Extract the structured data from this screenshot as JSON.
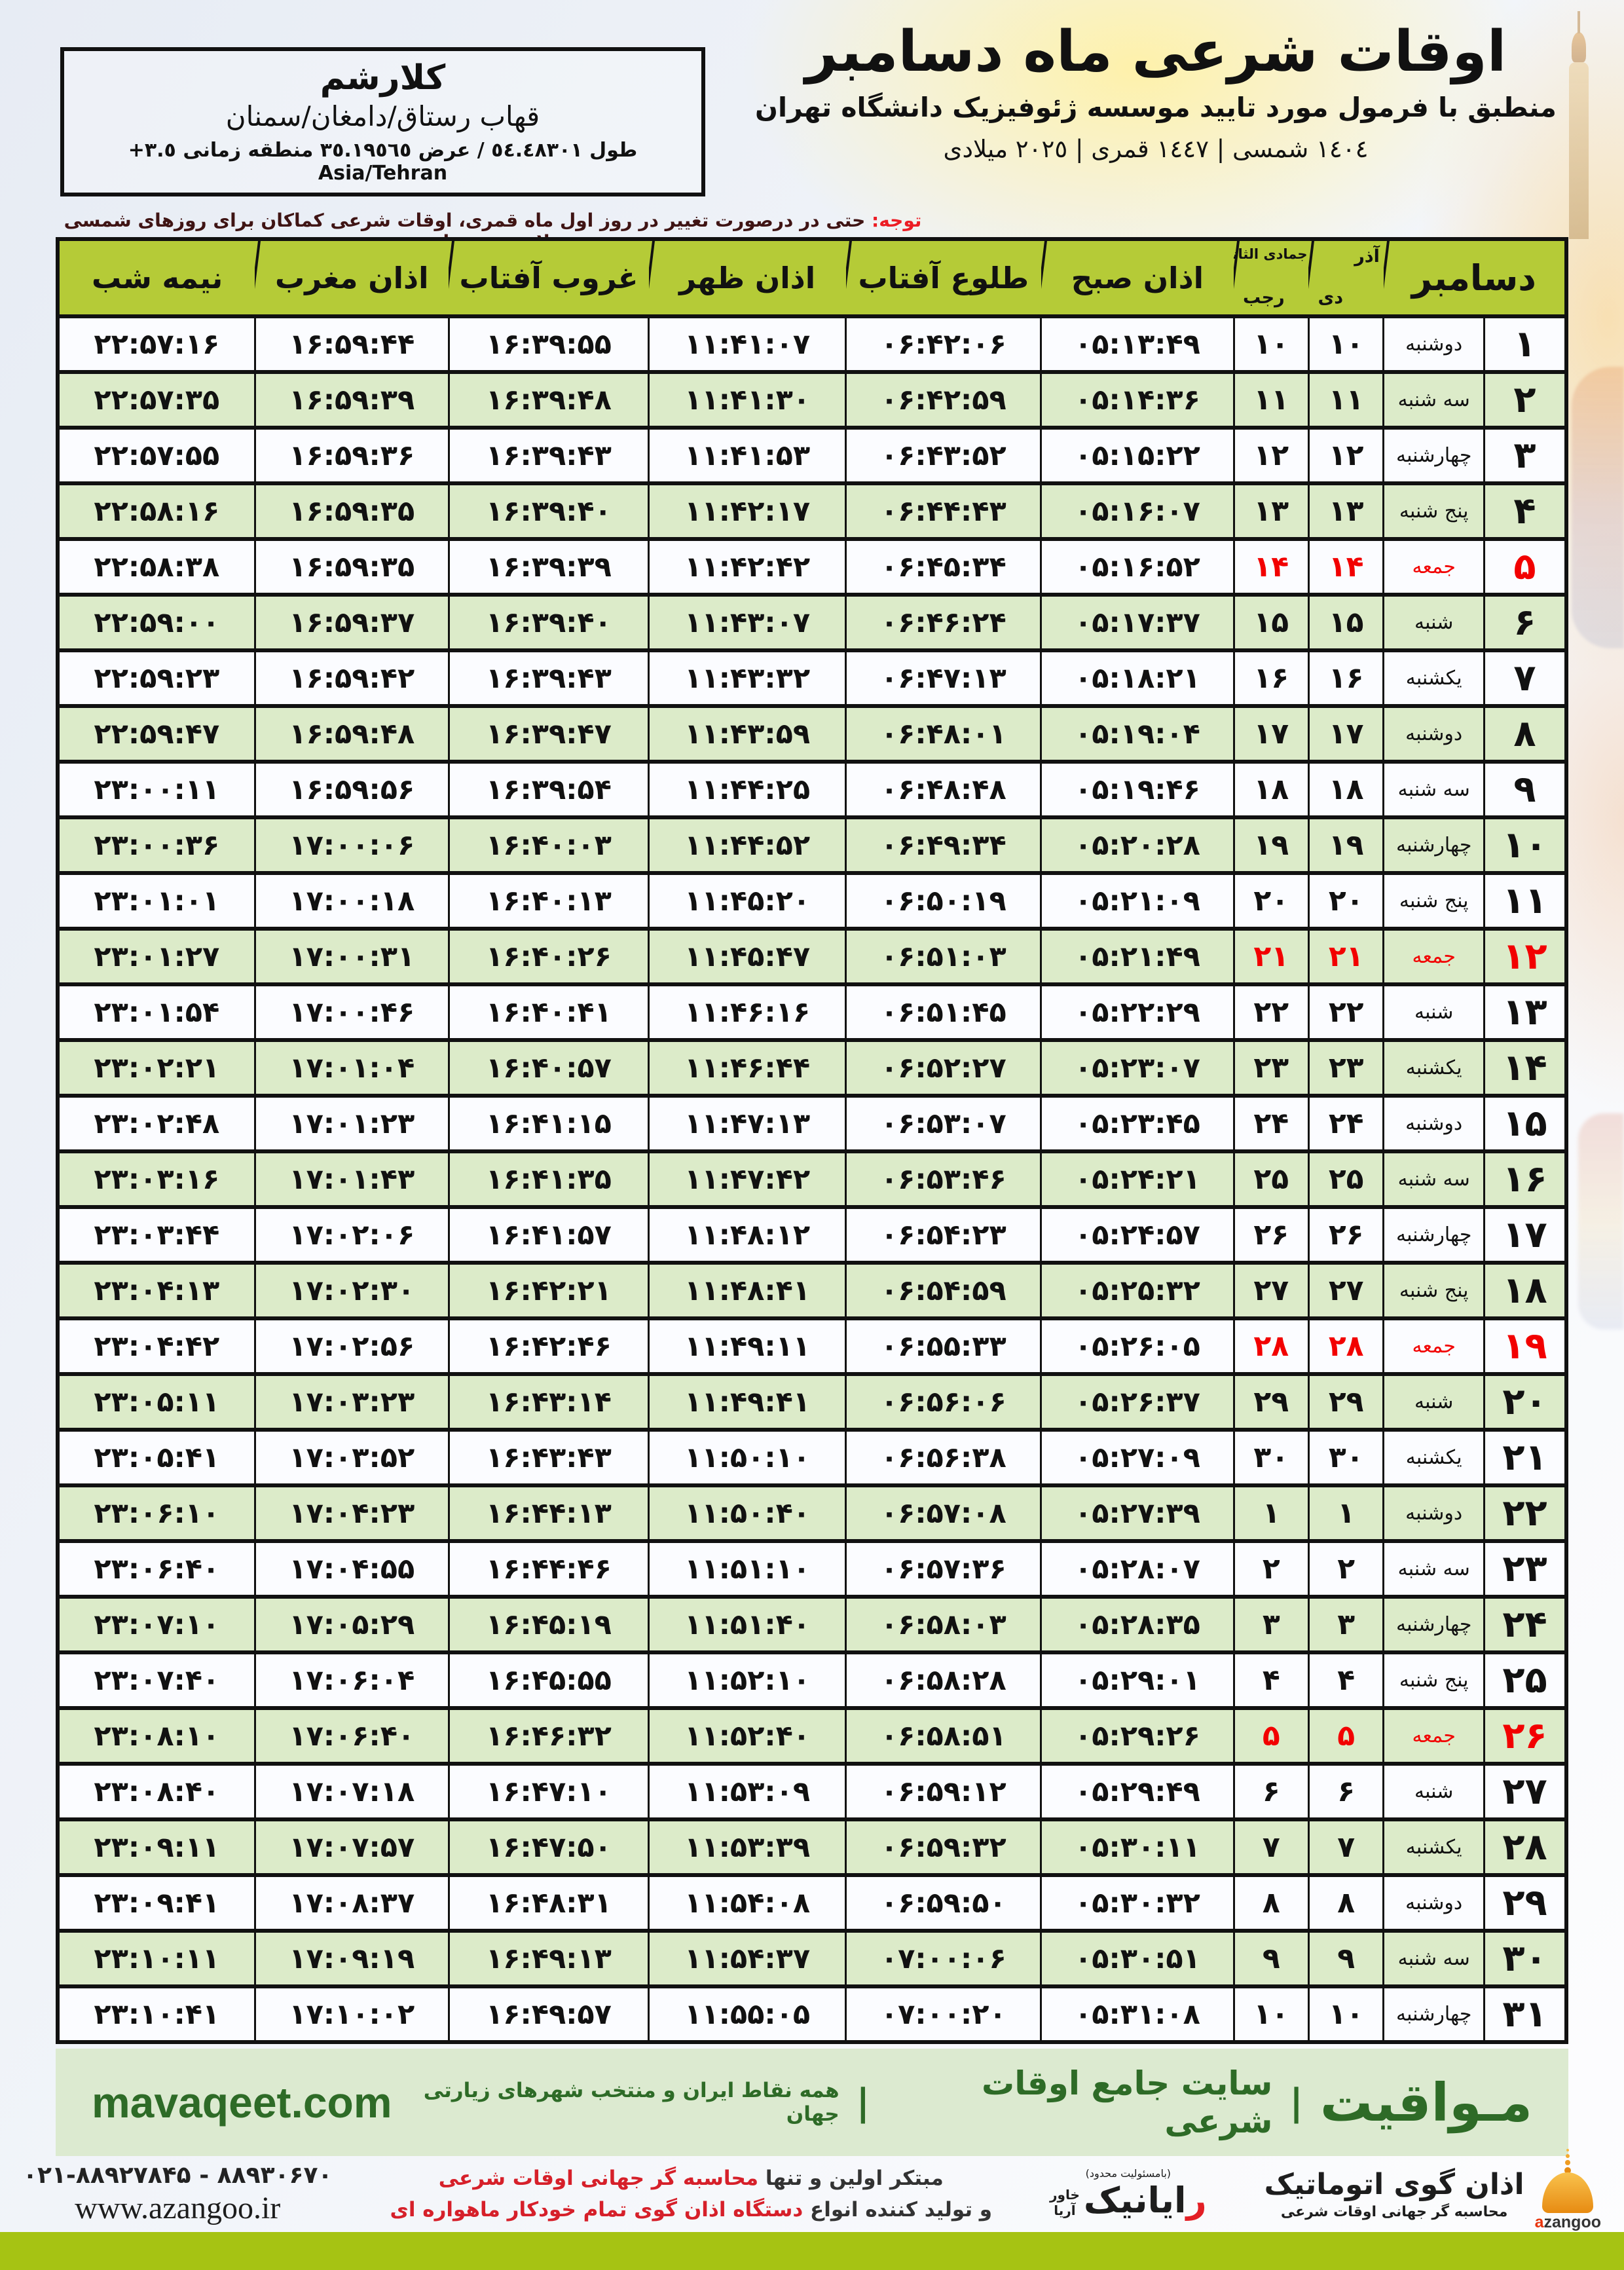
{
  "header": {
    "title": "اوقات شرعی ماه دسامبر",
    "subtitle": "منطبق با فرمول مورد تایید موسسه ژئوفیزیک دانشگاه تهران",
    "years": "١٤٠٤ شمسی | ١٤٤٧ قمری | ٢٠٢٥ میلادی"
  },
  "location": {
    "city": "کلارشم",
    "region": "قهاب رستاق/دامغان/سمنان",
    "coords": "طول ٥٤.٤٨٣٠١ / عرض ٣٥.١٩٥٦٥ منطقه زمانی ٣.٥+ Asia/Tehran"
  },
  "notice": {
    "label": "توجه:",
    "text": " حتی در درصورت تغییر در روز اول ماه قمری، اوقات شرعی کماکان برای روزهای شمسی و میلادی معتبر است."
  },
  "table": {
    "headers": {
      "december": "دسامبر",
      "solar_top": "آذر",
      "solar_bottom": "دی",
      "lunar_top": "جمادی الثانی",
      "lunar_bottom": "رجب",
      "fajr": "اذان صبح",
      "sunrise": "طلوع آفتاب",
      "dhuhr": "اذان ظهر",
      "sunset": "غروب آفتاب",
      "maghrib": "اذان مغرب",
      "midnight": "نیمه شب"
    },
    "columns": [
      "day",
      "weekday",
      "solar",
      "lunar",
      "fajr",
      "sunrise",
      "dhuhr",
      "sunset",
      "maghrib",
      "midnight"
    ],
    "rows": [
      {
        "day": "۱",
        "weekday": "دوشنبه",
        "solar": "۱۰",
        "lunar": "۱۰",
        "fajr": "۰۵:۱۳:۴۹",
        "sunrise": "۰۶:۴۲:۰۶",
        "dhuhr": "۱۱:۴۱:۰۷",
        "sunset": "۱۶:۳۹:۵۵",
        "maghrib": "۱۶:۵۹:۴۴",
        "midnight": "۲۲:۵۷:۱۶",
        "friday": false
      },
      {
        "day": "۲",
        "weekday": "سه شنبه",
        "solar": "۱۱",
        "lunar": "۱۱",
        "fajr": "۰۵:۱۴:۳۶",
        "sunrise": "۰۶:۴۲:۵۹",
        "dhuhr": "۱۱:۴۱:۳۰",
        "sunset": "۱۶:۳۹:۴۸",
        "maghrib": "۱۶:۵۹:۳۹",
        "midnight": "۲۲:۵۷:۳۵",
        "friday": false
      },
      {
        "day": "۳",
        "weekday": "چهارشنبه",
        "solar": "۱۲",
        "lunar": "۱۲",
        "fajr": "۰۵:۱۵:۲۲",
        "sunrise": "۰۶:۴۳:۵۲",
        "dhuhr": "۱۱:۴۱:۵۳",
        "sunset": "۱۶:۳۹:۴۳",
        "maghrib": "۱۶:۵۹:۳۶",
        "midnight": "۲۲:۵۷:۵۵",
        "friday": false
      },
      {
        "day": "۴",
        "weekday": "پنج شنبه",
        "solar": "۱۳",
        "lunar": "۱۳",
        "fajr": "۰۵:۱۶:۰۷",
        "sunrise": "۰۶:۴۴:۴۳",
        "dhuhr": "۱۱:۴۲:۱۷",
        "sunset": "۱۶:۳۹:۴۰",
        "maghrib": "۱۶:۵۹:۳۵",
        "midnight": "۲۲:۵۸:۱۶",
        "friday": false
      },
      {
        "day": "۵",
        "weekday": "جمعه",
        "solar": "۱۴",
        "lunar": "۱۴",
        "fajr": "۰۵:۱۶:۵۲",
        "sunrise": "۰۶:۴۵:۳۴",
        "dhuhr": "۱۱:۴۲:۴۲",
        "sunset": "۱۶:۳۹:۳۹",
        "maghrib": "۱۶:۵۹:۳۵",
        "midnight": "۲۲:۵۸:۳۸",
        "friday": true
      },
      {
        "day": "۶",
        "weekday": "شنبه",
        "solar": "۱۵",
        "lunar": "۱۵",
        "fajr": "۰۵:۱۷:۳۷",
        "sunrise": "۰۶:۴۶:۲۴",
        "dhuhr": "۱۱:۴۳:۰۷",
        "sunset": "۱۶:۳۹:۴۰",
        "maghrib": "۱۶:۵۹:۳۷",
        "midnight": "۲۲:۵۹:۰۰",
        "friday": false
      },
      {
        "day": "۷",
        "weekday": "یکشنبه",
        "solar": "۱۶",
        "lunar": "۱۶",
        "fajr": "۰۵:۱۸:۲۱",
        "sunrise": "۰۶:۴۷:۱۳",
        "dhuhr": "۱۱:۴۳:۳۲",
        "sunset": "۱۶:۳۹:۴۳",
        "maghrib": "۱۶:۵۹:۴۲",
        "midnight": "۲۲:۵۹:۲۳",
        "friday": false
      },
      {
        "day": "۸",
        "weekday": "دوشنبه",
        "solar": "۱۷",
        "lunar": "۱۷",
        "fajr": "۰۵:۱۹:۰۴",
        "sunrise": "۰۶:۴۸:۰۱",
        "dhuhr": "۱۱:۴۳:۵۹",
        "sunset": "۱۶:۳۹:۴۷",
        "maghrib": "۱۶:۵۹:۴۸",
        "midnight": "۲۲:۵۹:۴۷",
        "friday": false
      },
      {
        "day": "۹",
        "weekday": "سه شنبه",
        "solar": "۱۸",
        "lunar": "۱۸",
        "fajr": "۰۵:۱۹:۴۶",
        "sunrise": "۰۶:۴۸:۴۸",
        "dhuhr": "۱۱:۴۴:۲۵",
        "sunset": "۱۶:۳۹:۵۴",
        "maghrib": "۱۶:۵۹:۵۶",
        "midnight": "۲۳:۰۰:۱۱",
        "friday": false
      },
      {
        "day": "۱۰",
        "weekday": "چهارشنبه",
        "solar": "۱۹",
        "lunar": "۱۹",
        "fajr": "۰۵:۲۰:۲۸",
        "sunrise": "۰۶:۴۹:۳۴",
        "dhuhr": "۱۱:۴۴:۵۲",
        "sunset": "۱۶:۴۰:۰۳",
        "maghrib": "۱۷:۰۰:۰۶",
        "midnight": "۲۳:۰۰:۳۶",
        "friday": false
      },
      {
        "day": "۱۱",
        "weekday": "پنج شنبه",
        "solar": "۲۰",
        "lunar": "۲۰",
        "fajr": "۰۵:۲۱:۰۹",
        "sunrise": "۰۶:۵۰:۱۹",
        "dhuhr": "۱۱:۴۵:۲۰",
        "sunset": "۱۶:۴۰:۱۳",
        "maghrib": "۱۷:۰۰:۱۸",
        "midnight": "۲۳:۰۱:۰۱",
        "friday": false
      },
      {
        "day": "۱۲",
        "weekday": "جمعه",
        "solar": "۲۱",
        "lunar": "۲۱",
        "fajr": "۰۵:۲۱:۴۹",
        "sunrise": "۰۶:۵۱:۰۳",
        "dhuhr": "۱۱:۴۵:۴۷",
        "sunset": "۱۶:۴۰:۲۶",
        "maghrib": "۱۷:۰۰:۳۱",
        "midnight": "۲۳:۰۱:۲۷",
        "friday": true
      },
      {
        "day": "۱۳",
        "weekday": "شنبه",
        "solar": "۲۲",
        "lunar": "۲۲",
        "fajr": "۰۵:۲۲:۲۹",
        "sunrise": "۰۶:۵۱:۴۵",
        "dhuhr": "۱۱:۴۶:۱۶",
        "sunset": "۱۶:۴۰:۴۱",
        "maghrib": "۱۷:۰۰:۴۶",
        "midnight": "۲۳:۰۱:۵۴",
        "friday": false
      },
      {
        "day": "۱۴",
        "weekday": "یکشنبه",
        "solar": "۲۳",
        "lunar": "۲۳",
        "fajr": "۰۵:۲۳:۰۷",
        "sunrise": "۰۶:۵۲:۲۷",
        "dhuhr": "۱۱:۴۶:۴۴",
        "sunset": "۱۶:۴۰:۵۷",
        "maghrib": "۱۷:۰۱:۰۴",
        "midnight": "۲۳:۰۲:۲۱",
        "friday": false
      },
      {
        "day": "۱۵",
        "weekday": "دوشنبه",
        "solar": "۲۴",
        "lunar": "۲۴",
        "fajr": "۰۵:۲۳:۴۵",
        "sunrise": "۰۶:۵۳:۰۷",
        "dhuhr": "۱۱:۴۷:۱۳",
        "sunset": "۱۶:۴۱:۱۵",
        "maghrib": "۱۷:۰۱:۲۳",
        "midnight": "۲۳:۰۲:۴۸",
        "friday": false
      },
      {
        "day": "۱۶",
        "weekday": "سه شنبه",
        "solar": "۲۵",
        "lunar": "۲۵",
        "fajr": "۰۵:۲۴:۲۱",
        "sunrise": "۰۶:۵۳:۴۶",
        "dhuhr": "۱۱:۴۷:۴۲",
        "sunset": "۱۶:۴۱:۳۵",
        "maghrib": "۱۷:۰۱:۴۳",
        "midnight": "۲۳:۰۳:۱۶",
        "friday": false
      },
      {
        "day": "۱۷",
        "weekday": "چهارشنبه",
        "solar": "۲۶",
        "lunar": "۲۶",
        "fajr": "۰۵:۲۴:۵۷",
        "sunrise": "۰۶:۵۴:۲۳",
        "dhuhr": "۱۱:۴۸:۱۲",
        "sunset": "۱۶:۴۱:۵۷",
        "maghrib": "۱۷:۰۲:۰۶",
        "midnight": "۲۳:۰۳:۴۴",
        "friday": false
      },
      {
        "day": "۱۸",
        "weekday": "پنج شنبه",
        "solar": "۲۷",
        "lunar": "۲۷",
        "fajr": "۰۵:۲۵:۳۲",
        "sunrise": "۰۶:۵۴:۵۹",
        "dhuhr": "۱۱:۴۸:۴۱",
        "sunset": "۱۶:۴۲:۲۱",
        "maghrib": "۱۷:۰۲:۳۰",
        "midnight": "۲۳:۰۴:۱۳",
        "friday": false
      },
      {
        "day": "۱۹",
        "weekday": "جمعه",
        "solar": "۲۸",
        "lunar": "۲۸",
        "fajr": "۰۵:۲۶:۰۵",
        "sunrise": "۰۶:۵۵:۳۳",
        "dhuhr": "۱۱:۴۹:۱۱",
        "sunset": "۱۶:۴۲:۴۶",
        "maghrib": "۱۷:۰۲:۵۶",
        "midnight": "۲۳:۰۴:۴۲",
        "friday": true
      },
      {
        "day": "۲۰",
        "weekday": "شنبه",
        "solar": "۲۹",
        "lunar": "۲۹",
        "fajr": "۰۵:۲۶:۳۷",
        "sunrise": "۰۶:۵۶:۰۶",
        "dhuhr": "۱۱:۴۹:۴۱",
        "sunset": "۱۶:۴۳:۱۴",
        "maghrib": "۱۷:۰۳:۲۳",
        "midnight": "۲۳:۰۵:۱۱",
        "friday": false
      },
      {
        "day": "۲۱",
        "weekday": "یکشنبه",
        "solar": "۳۰",
        "lunar": "۳۰",
        "fajr": "۰۵:۲۷:۰۹",
        "sunrise": "۰۶:۵۶:۳۸",
        "dhuhr": "۱۱:۵۰:۱۰",
        "sunset": "۱۶:۴۳:۴۳",
        "maghrib": "۱۷:۰۳:۵۲",
        "midnight": "۲۳:۰۵:۴۱",
        "friday": false
      },
      {
        "day": "۲۲",
        "weekday": "دوشنبه",
        "solar": "۱",
        "lunar": "۱",
        "fajr": "۰۵:۲۷:۳۹",
        "sunrise": "۰۶:۵۷:۰۸",
        "dhuhr": "۱۱:۵۰:۴۰",
        "sunset": "۱۶:۴۴:۱۳",
        "maghrib": "۱۷:۰۴:۲۳",
        "midnight": "۲۳:۰۶:۱۰",
        "friday": false
      },
      {
        "day": "۲۳",
        "weekday": "سه شنبه",
        "solar": "۲",
        "lunar": "۲",
        "fajr": "۰۵:۲۸:۰۷",
        "sunrise": "۰۶:۵۷:۳۶",
        "dhuhr": "۱۱:۵۱:۱۰",
        "sunset": "۱۶:۴۴:۴۶",
        "maghrib": "۱۷:۰۴:۵۵",
        "midnight": "۲۳:۰۶:۴۰",
        "friday": false
      },
      {
        "day": "۲۴",
        "weekday": "چهارشنبه",
        "solar": "۳",
        "lunar": "۳",
        "fajr": "۰۵:۲۸:۳۵",
        "sunrise": "۰۶:۵۸:۰۳",
        "dhuhr": "۱۱:۵۱:۴۰",
        "sunset": "۱۶:۴۵:۱۹",
        "maghrib": "۱۷:۰۵:۲۹",
        "midnight": "۲۳:۰۷:۱۰",
        "friday": false
      },
      {
        "day": "۲۵",
        "weekday": "پنج شنبه",
        "solar": "۴",
        "lunar": "۴",
        "fajr": "۰۵:۲۹:۰۱",
        "sunrise": "۰۶:۵۸:۲۸",
        "dhuhr": "۱۱:۵۲:۱۰",
        "sunset": "۱۶:۴۵:۵۵",
        "maghrib": "۱۷:۰۶:۰۴",
        "midnight": "۲۳:۰۷:۴۰",
        "friday": false
      },
      {
        "day": "۲۶",
        "weekday": "جمعه",
        "solar": "۵",
        "lunar": "۵",
        "fajr": "۰۵:۲۹:۲۶",
        "sunrise": "۰۶:۵۸:۵۱",
        "dhuhr": "۱۱:۵۲:۴۰",
        "sunset": "۱۶:۴۶:۳۲",
        "maghrib": "۱۷:۰۶:۴۰",
        "midnight": "۲۳:۰۸:۱۰",
        "friday": true
      },
      {
        "day": "۲۷",
        "weekday": "شنبه",
        "solar": "۶",
        "lunar": "۶",
        "fajr": "۰۵:۲۹:۴۹",
        "sunrise": "۰۶:۵۹:۱۲",
        "dhuhr": "۱۱:۵۳:۰۹",
        "sunset": "۱۶:۴۷:۱۰",
        "maghrib": "۱۷:۰۷:۱۸",
        "midnight": "۲۳:۰۸:۴۰",
        "friday": false
      },
      {
        "day": "۲۸",
        "weekday": "یکشنبه",
        "solar": "۷",
        "lunar": "۷",
        "fajr": "۰۵:۳۰:۱۱",
        "sunrise": "۰۶:۵۹:۳۲",
        "dhuhr": "۱۱:۵۳:۳۹",
        "sunset": "۱۶:۴۷:۵۰",
        "maghrib": "۱۷:۰۷:۵۷",
        "midnight": "۲۳:۰۹:۱۱",
        "friday": false
      },
      {
        "day": "۲۹",
        "weekday": "دوشنبه",
        "solar": "۸",
        "lunar": "۸",
        "fajr": "۰۵:۳۰:۳۲",
        "sunrise": "۰۶:۵۹:۵۰",
        "dhuhr": "۱۱:۵۴:۰۸",
        "sunset": "۱۶:۴۸:۳۱",
        "maghrib": "۱۷:۰۸:۳۷",
        "midnight": "۲۳:۰۹:۴۱",
        "friday": false
      },
      {
        "day": "۳۰",
        "weekday": "سه شنبه",
        "solar": "۹",
        "lunar": "۹",
        "fajr": "۰۵:۳۰:۵۱",
        "sunrise": "۰۷:۰۰:۰۶",
        "dhuhr": "۱۱:۵۴:۳۷",
        "sunset": "۱۶:۴۹:۱۳",
        "maghrib": "۱۷:۰۹:۱۹",
        "midnight": "۲۳:۱۰:۱۱",
        "friday": false
      },
      {
        "day": "۳۱",
        "weekday": "چهارشنبه",
        "solar": "۱۰",
        "lunar": "۱۰",
        "fajr": "۰۵:۳۱:۰۸",
        "sunrise": "۰۷:۰۰:۲۰",
        "dhuhr": "۱۱:۵۵:۰۵",
        "sunset": "۱۶:۴۹:۵۷",
        "maghrib": "۱۷:۱۰:۰۲",
        "midnight": "۲۳:۱۰:۴۱",
        "friday": false
      }
    ]
  },
  "brandband": {
    "brand": "مـواقیت",
    "separator": "|",
    "site_desc": "سایت جامع اوقات شرعی",
    "coverage": "همه نقاط ایران و منتخب شهرهای زیارتی جهان",
    "domain": "mavaqeet.com"
  },
  "bottom": {
    "azangoo_title": "اذان گوی اتوماتیک",
    "azangoo_tagline": "محاسبه گر جهانی اوقات شرعی",
    "azangoo_latin_a": "a",
    "azangoo_latin_rest": "zangoo",
    "rayanik_limited": "(بامسئولیت محدود)",
    "rayanik_r": "ر",
    "rayanik_rest": "ایانیک",
    "rayanik_sub": "خاور\nآریا",
    "claim1_dark": "مبتکر اولین و تنها ",
    "claim1_red": "محاسبه گر جهانی اوقات شرعی",
    "claim2_dark": "و تولید کننده انواع ",
    "claim2_red": "دستگاه اذان گوی تمام خودکار ماهواره ای",
    "phones": "۰۲۱-۸۸۹۲۷۸۴۵ - ۸۸۹۳۰۶۷۰",
    "website": "www.azangoo.ir"
  },
  "colors": {
    "header_green": "#b5cb37",
    "row_green": "#dcebc9",
    "band_green": "#dcead0",
    "bar_green": "#a6c313",
    "brand_text_green": "#2e6b27",
    "friday_red": "#f20000",
    "notice_red": "#ec1c24"
  }
}
